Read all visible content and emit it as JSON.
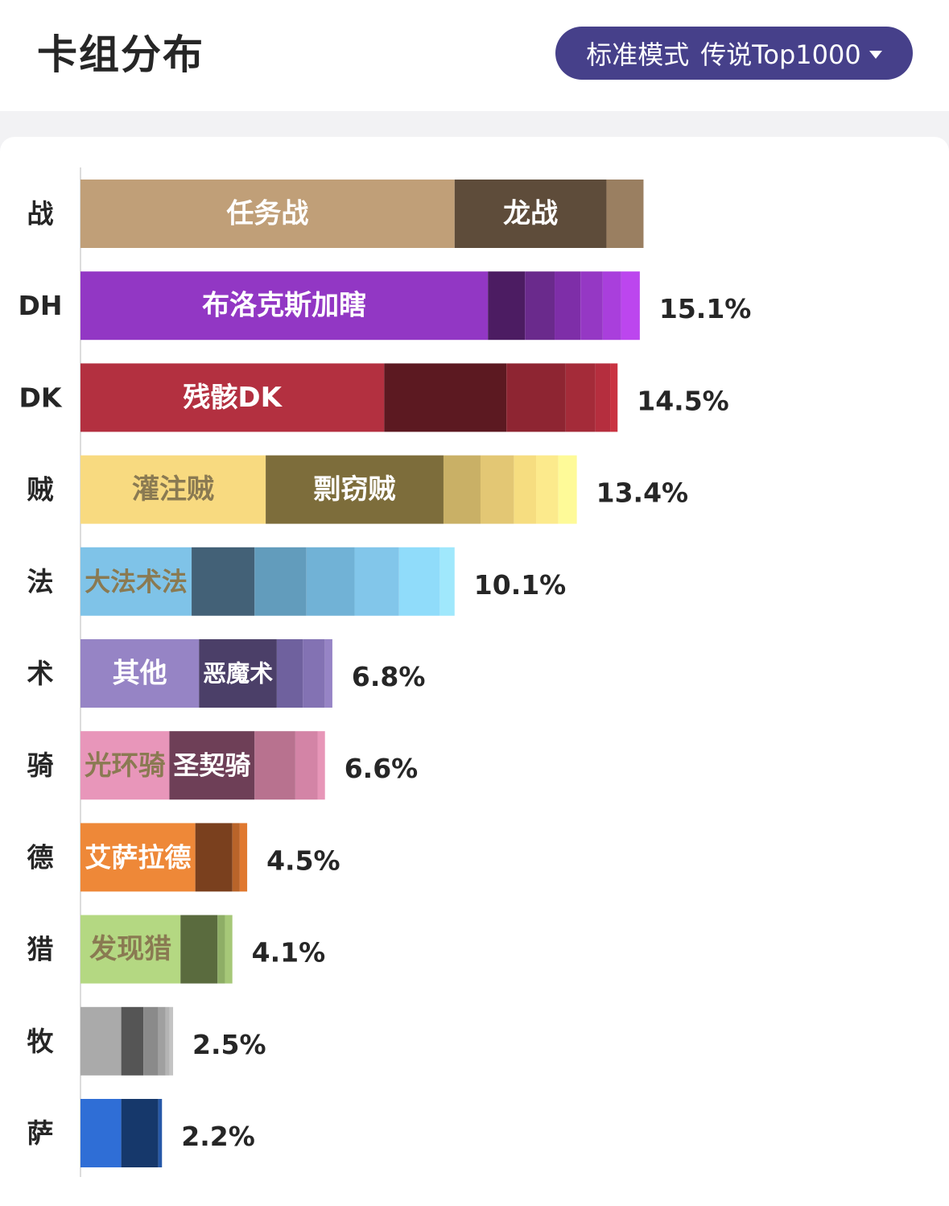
{
  "header": {
    "title": "卡组分布",
    "mode_label": "标准模式",
    "rank_label": "传说Top1000",
    "dropdown_icon": "caret-down-icon",
    "pill_color": "#46408a"
  },
  "chart_data": {
    "type": "bar",
    "orientation": "horizontal",
    "stacked": true,
    "unit": "%",
    "grid": false,
    "legend": "none",
    "xlim": [
      0,
      22.6
    ],
    "rows": [
      {
        "category": "战",
        "total_label": "",
        "segments": [
          {
            "label": "任务战",
            "value": 10.1,
            "color": "#c09f78"
          },
          {
            "label": "龙战",
            "value": 4.1,
            "color": "#5e4c3a"
          },
          {
            "label": "",
            "value": 1.0,
            "color": "#9a7f61"
          }
        ]
      },
      {
        "category": "DH",
        "total_label": "15.1%",
        "segments": [
          {
            "label": "布洛克斯加瞎",
            "value": 11.0,
            "color": "#9237c4"
          },
          {
            "label": "",
            "value": 1.0,
            "color": "#4c1c62"
          },
          {
            "label": "",
            "value": 0.8,
            "color": "#6a2a8c"
          },
          {
            "label": "",
            "value": 0.7,
            "color": "#7e2ea8"
          },
          {
            "label": "",
            "value": 0.6,
            "color": "#9538c4"
          },
          {
            "label": "",
            "value": 0.5,
            "color": "#a93fdc"
          },
          {
            "label": "",
            "value": 0.5,
            "color": "#bc46ee"
          }
        ]
      },
      {
        "category": "DK",
        "total_label": "14.5%",
        "segments": [
          {
            "label": "残骸DK",
            "value": 8.2,
            "color": "#b33040"
          },
          {
            "label": "",
            "value": 3.3,
            "color": "#5c1921"
          },
          {
            "label": "",
            "value": 1.6,
            "color": "#8e2532"
          },
          {
            "label": "",
            "value": 0.8,
            "color": "#a42b39"
          },
          {
            "label": "",
            "value": 0.4,
            "color": "#b52e3e"
          },
          {
            "label": "",
            "value": 0.2,
            "color": "#c93341"
          }
        ]
      },
      {
        "category": "贼",
        "total_label": "13.4%",
        "segments": [
          {
            "label": "灌注贼",
            "value": 5.0,
            "color": "#f8da80"
          },
          {
            "label": "剽窃贼",
            "value": 4.8,
            "color": "#7d6d3b"
          },
          {
            "label": "",
            "value": 1.0,
            "color": "#c9b066"
          },
          {
            "label": "",
            "value": 0.9,
            "color": "#e3c774"
          },
          {
            "label": "",
            "value": 0.6,
            "color": "#f6dd80"
          },
          {
            "label": "",
            "value": 0.6,
            "color": "#fcea8c"
          },
          {
            "label": "",
            "value": 0.5,
            "color": "#fefa98"
          }
        ]
      },
      {
        "category": "法",
        "total_label": "10.1%",
        "segments": [
          {
            "label": "大法术法",
            "value": 3.0,
            "color": "#7fc3e8"
          },
          {
            "label": "",
            "value": 1.7,
            "color": "#436177"
          },
          {
            "label": "",
            "value": 1.4,
            "color": "#629cbc"
          },
          {
            "label": "",
            "value": 1.3,
            "color": "#71b2d6"
          },
          {
            "label": "",
            "value": 1.2,
            "color": "#82c6ea"
          },
          {
            "label": "",
            "value": 1.1,
            "color": "#90dcfa"
          },
          {
            "label": "",
            "value": 0.4,
            "color": "#a0e8fc"
          }
        ]
      },
      {
        "category": "术",
        "total_label": "6.8%",
        "segments": [
          {
            "label": "其他",
            "value": 3.2,
            "color": "#9684c5"
          },
          {
            "label": "恶魔术",
            "value": 2.1,
            "color": "#4b3f68"
          },
          {
            "label": "",
            "value": 0.7,
            "color": "#6f619e"
          },
          {
            "label": "",
            "value": 0.6,
            "color": "#8372b3"
          },
          {
            "label": "",
            "value": 0.2,
            "color": "#9684c5"
          }
        ]
      },
      {
        "category": "骑",
        "total_label": "6.6%",
        "segments": [
          {
            "label": "光环骑",
            "value": 2.4,
            "color": "#e896ba"
          },
          {
            "label": "圣契骑",
            "value": 2.3,
            "color": "#6e3f57"
          },
          {
            "label": "",
            "value": 1.1,
            "color": "#b8728f"
          },
          {
            "label": "",
            "value": 0.6,
            "color": "#d384a6"
          },
          {
            "label": "",
            "value": 0.2,
            "color": "#e796b8"
          }
        ]
      },
      {
        "category": "德",
        "total_label": "4.5%",
        "segments": [
          {
            "label": "艾萨拉德",
            "value": 3.1,
            "color": "#ee8838"
          },
          {
            "label": "",
            "value": 1.0,
            "color": "#7a401e"
          },
          {
            "label": "",
            "value": 0.2,
            "color": "#b9642a"
          },
          {
            "label": "",
            "value": 0.2,
            "color": "#e0782f"
          }
        ]
      },
      {
        "category": "猎",
        "total_label": "4.1%",
        "segments": [
          {
            "label": "发现猎",
            "value": 2.7,
            "color": "#b4d882"
          },
          {
            "label": "",
            "value": 1.0,
            "color": "#5a6b3e"
          },
          {
            "label": "",
            "value": 0.2,
            "color": "#8eae66"
          },
          {
            "label": "",
            "value": 0.2,
            "color": "#a6c878"
          }
        ]
      },
      {
        "category": "牧",
        "total_label": "2.5%",
        "segments": [
          {
            "label": "",
            "value": 1.1,
            "color": "#aaaaaa"
          },
          {
            "label": "",
            "value": 0.6,
            "color": "#555555"
          },
          {
            "label": "",
            "value": 0.4,
            "color": "#8a8a8a"
          },
          {
            "label": "",
            "value": 0.2,
            "color": "#a0a0a0"
          },
          {
            "label": "",
            "value": 0.1,
            "color": "#b4b4b4"
          },
          {
            "label": "",
            "value": 0.1,
            "color": "#c4c4c4"
          }
        ]
      },
      {
        "category": "萨",
        "total_label": "2.2%",
        "segments": [
          {
            "label": "",
            "value": 1.1,
            "color": "#2f6ed6"
          },
          {
            "label": "",
            "value": 1.0,
            "color": "#16386b"
          },
          {
            "label": "",
            "value": 0.1,
            "color": "#2658a8"
          }
        ]
      }
    ]
  }
}
